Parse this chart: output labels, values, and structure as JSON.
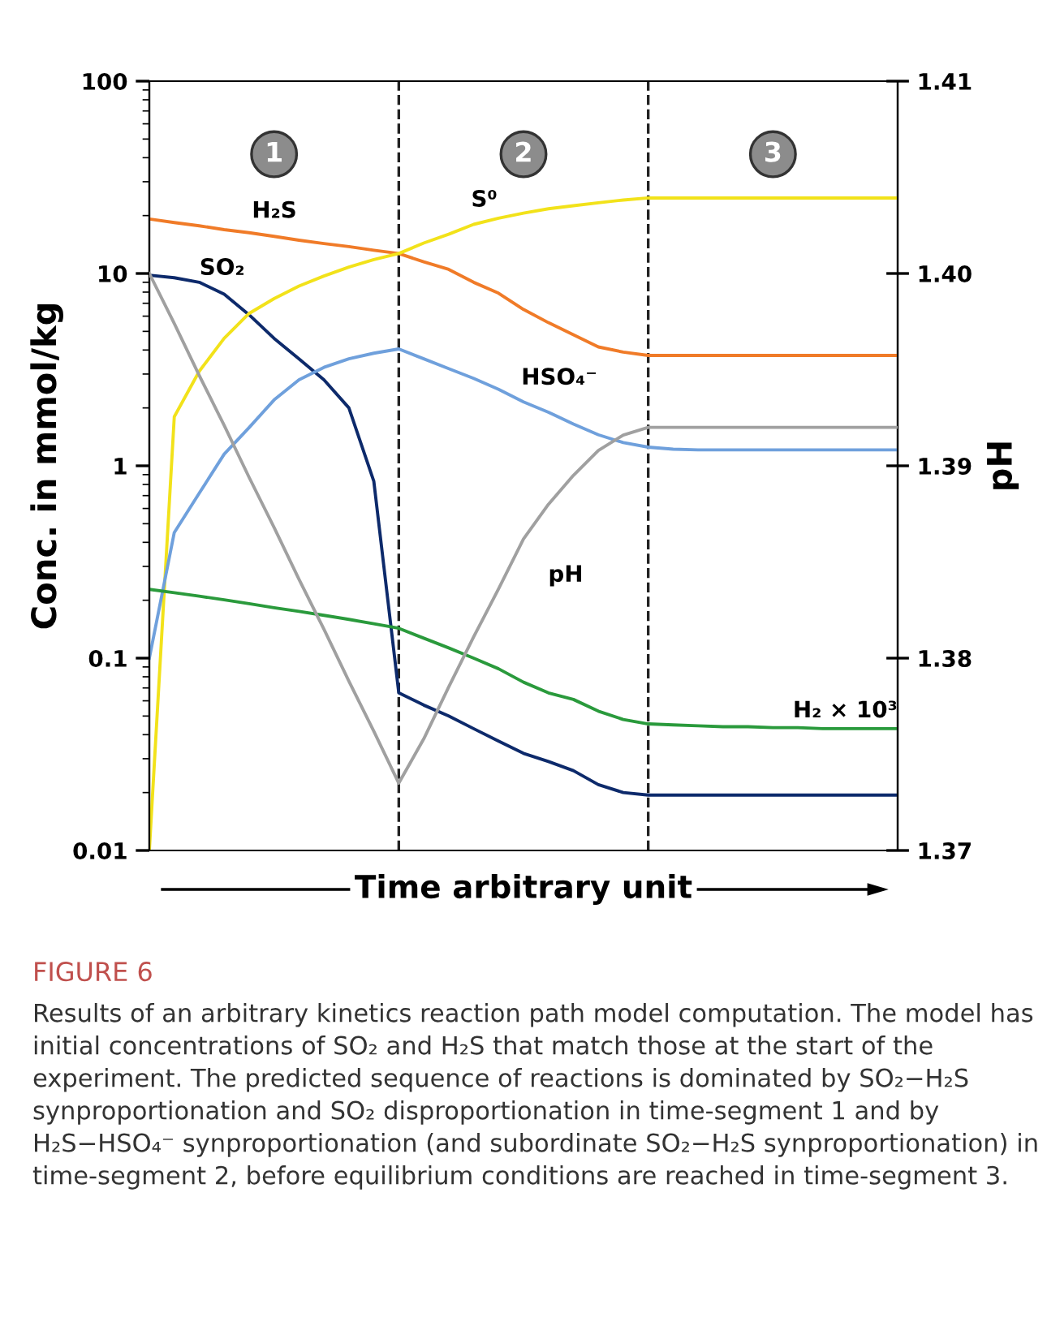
{
  "chart_data": {
    "type": "line",
    "xlabel": "Time arbitrary unit",
    "ylabel": "Conc. in mmol/kg",
    "y2label": "pH",
    "categories": [
      null,
      null,
      null,
      null,
      null,
      null,
      null,
      null,
      null,
      null,
      null,
      null,
      null,
      null,
      null,
      null,
      null,
      null,
      null,
      null,
      null,
      null,
      null,
      null,
      null,
      null,
      null,
      null,
      null,
      null,
      null
    ],
    "ylim": [
      0.01,
      100
    ],
    "yticks": [
      0.01,
      0.1,
      1,
      10,
      100
    ],
    "log": "y",
    "y2lim": [
      1.37,
      1.41
    ],
    "y2ticks": [
      1.37,
      1.38,
      1.39,
      {
        "value": 1.4,
        "label": "1.40"
      },
      1.41
    ],
    "tick_labels": "y",
    "grid": false,
    "legend": false,
    "marker": "none",
    "line_style": "solid",
    "series": [
      {
        "name": "H₂S",
        "color": "#f07b28",
        "values": [
          19.2,
          18.4,
          17.7,
          16.9,
          16.3,
          15.6,
          14.9,
          14.3,
          13.8,
          13.2,
          12.7,
          11.5,
          10.5,
          9.0,
          7.9,
          6.5,
          5.55,
          4.8,
          4.15,
          3.9,
          3.75,
          3.75,
          3.75,
          3.75,
          3.75,
          3.75,
          3.75,
          3.75,
          3.75,
          3.75,
          3.75
        ]
      },
      {
        "name": "SO₂",
        "color": "#0d2a6b",
        "values": [
          9.8,
          9.5,
          9.0,
          7.8,
          6.1,
          4.6,
          3.6,
          2.8,
          2.0,
          0.83,
          0.066,
          0.057,
          0.05,
          0.043,
          0.037,
          0.032,
          0.029,
          0.026,
          0.022,
          0.02,
          0.0194,
          0.0194,
          0.0194,
          0.0194,
          0.0194,
          0.0194,
          0.0194,
          0.0194,
          0.0194,
          0.0194,
          0.0194
        ]
      },
      {
        "name": "S⁰",
        "color": "#f2e21a",
        "values": [
          0.01,
          1.8,
          3.1,
          4.6,
          6.2,
          7.4,
          8.6,
          9.7,
          10.8,
          11.8,
          12.7,
          14.4,
          16,
          18,
          19.4,
          20.6,
          21.7,
          22.5,
          23.3,
          24.1,
          24.7,
          24.7,
          24.7,
          24.7,
          24.7,
          24.7,
          24.7,
          24.7,
          24.7,
          24.7,
          24.7
        ]
      },
      {
        "name": "HSO₄⁻",
        "color": "#6fa0dc",
        "values": [
          0.1,
          0.45,
          0.72,
          1.15,
          1.58,
          2.2,
          2.8,
          3.25,
          3.6,
          3.85,
          4.05,
          3.6,
          3.2,
          2.85,
          2.5,
          2.15,
          1.9,
          1.65,
          1.45,
          1.32,
          1.25,
          1.22,
          1.21,
          1.21,
          1.21,
          1.21,
          1.21,
          1.21,
          1.21,
          1.21,
          1.21
        ]
      },
      {
        "name": "H₂ × 10³",
        "color": "#2a9a3c",
        "values": [
          0.228,
          0.219,
          0.21,
          0.201,
          0.192,
          0.183,
          0.175,
          0.167,
          0.159,
          0.151,
          0.143,
          0.127,
          0.113,
          0.1,
          0.088,
          0.075,
          0.066,
          0.061,
          0.053,
          0.048,
          0.0455,
          0.045,
          0.0445,
          0.044,
          0.044,
          0.0435,
          0.0435,
          0.043,
          0.043,
          0.043,
          0.043
        ]
      },
      {
        "name": "pH",
        "color": "#a0a0a0",
        "axis": "y2",
        "values": [
          1.4,
          1.3974,
          1.3947,
          1.3921,
          1.3894,
          1.3868,
          1.3841,
          1.3815,
          1.3788,
          1.3762,
          1.3735,
          1.3758,
          1.3785,
          1.3811,
          1.3836,
          1.3862,
          1.388,
          1.3895,
          1.3908,
          1.3916,
          1.392,
          1.392,
          1.392,
          1.392,
          1.392,
          1.392,
          1.392,
          1.392,
          1.392,
          1.392,
          1.392
        ]
      }
    ],
    "annotations": [
      "1",
      "2",
      "3",
      "FIGURE 6",
      "Results of an arbitrary kinetics reaction path model computation. The model has initial concentrations of SO₂ and H₂S that match those at the start of the experiment. The predicted sequence of reactions is dominated by SO₂−H₂S synproportionation and SO₂ disproportionation in time-segment 1 and by H₂S−HSO₄⁻ synproportionation (and subordinate SO₂−H₂S synproportionation) in time-segment 2, before equilibrium conditions are reached in time-segment 3."
    ]
  }
}
